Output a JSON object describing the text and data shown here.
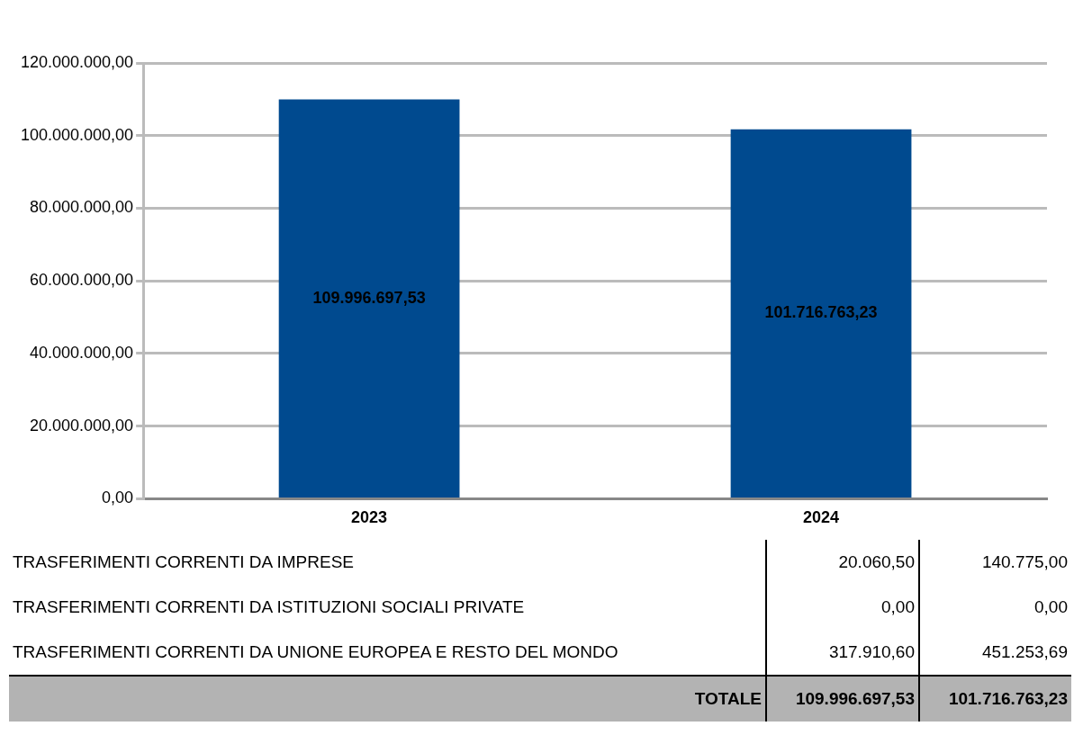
{
  "chart_data": {
    "type": "bar",
    "categories": [
      "2023",
      "2024"
    ],
    "values": [
      109996697.53,
      101716763.23
    ],
    "value_labels": [
      "109.996.697,53",
      "101.716.763,23"
    ],
    "color": "#004a8f",
    "ylim": [
      0,
      120000000
    ],
    "yticks": [
      {
        "value": 0,
        "label": "0,00"
      },
      {
        "value": 20000000,
        "label": "20.000.000,00"
      },
      {
        "value": 40000000,
        "label": "40.000.000,00"
      },
      {
        "value": 60000000,
        "label": "60.000.000,00"
      },
      {
        "value": 80000000,
        "label": "80.000.000,00"
      },
      {
        "value": 100000000,
        "label": "100.000.000,00"
      },
      {
        "value": 120000000,
        "label": "120.000.000,00"
      }
    ],
    "grid": "y",
    "annotations": [
      "TRASFERIMENTI CORRENTI DA IMPRESE",
      "20.060,50",
      "140.775,00",
      "TRASFERIMENTI CORRENTI DA ISTITUZIONI SOCIALI PRIVATE",
      "0,00",
      "0,00",
      "TRASFERIMENTI CORRENTI DA UNIONE EUROPEA E RESTO DEL MONDO",
      "317.910,60",
      "451.253,69",
      "TOTALE",
      "109.996.697,53",
      "101.716.763,23"
    ]
  }
}
